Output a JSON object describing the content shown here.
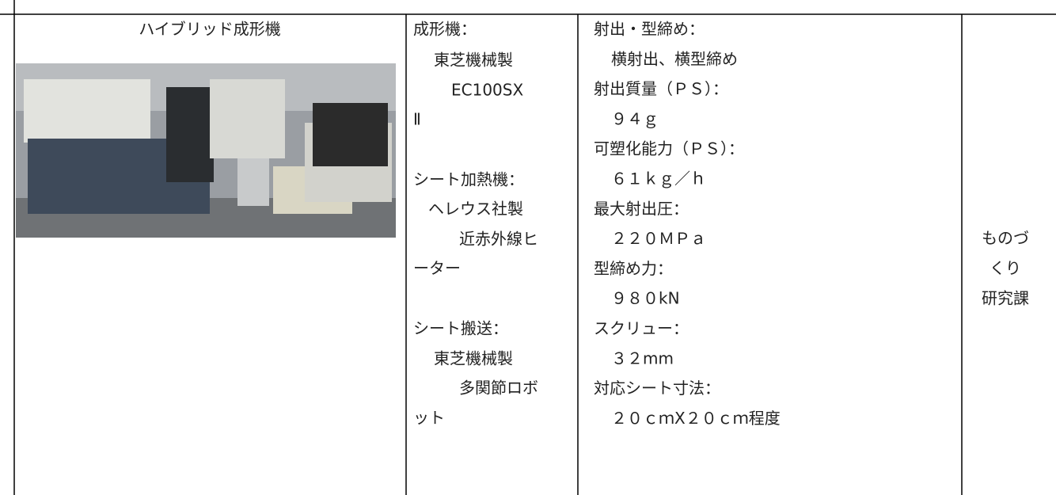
{
  "table": {
    "equipment": "ハイブリッド成形機",
    "specs_left": [
      "成形機：",
      "東芝機械製",
      "EC100SX",
      "Ⅱ",
      "シート加熱機：",
      "ヘレウス社製",
      "近赤外線ヒ",
      "ーター",
      "シート搬送：",
      "東芝機械製",
      "多関節ロボ",
      "ット"
    ],
    "specs_right": [
      "射出・型締め：",
      "横射出、横型締め",
      "射出質量（ＰＳ）：",
      "９４ｇ",
      "可塑化能力（ＰＳ）：",
      "６１ｋｇ／ｈ",
      "最大射出圧：",
      "２２０ＭＰａ",
      "型締め力：",
      "９８０kN",
      "スクリュー：",
      "３２mm",
      "対応シート寸法：",
      "２０ｃｍX２０ｃｍ程度"
    ],
    "department": [
      "ものづ",
      "くり",
      "研究課"
    ]
  }
}
